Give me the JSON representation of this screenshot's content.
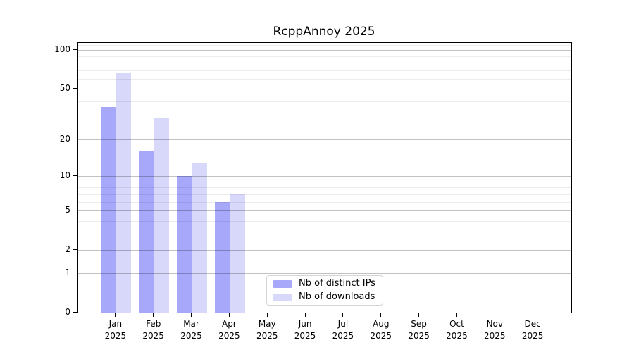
{
  "chart_data": {
    "type": "bar",
    "title": "RcppAnnoy 2025",
    "categories": [
      "Jan",
      "Feb",
      "Mar",
      "Apr",
      "May",
      "Jun",
      "Jul",
      "Aug",
      "Sep",
      "Oct",
      "Nov",
      "Dec"
    ],
    "year_label": "2025",
    "series": [
      {
        "name": "Nb of distinct IPs",
        "color": "#a8a8fa",
        "values": [
          36,
          16,
          10,
          6,
          0,
          0,
          0,
          0,
          0,
          0,
          0,
          0
        ]
      },
      {
        "name": "Nb of downloads",
        "color": "#d8d8fa",
        "values": [
          67,
          30,
          13,
          7,
          0,
          0,
          0,
          0,
          0,
          0,
          0,
          0
        ]
      }
    ],
    "yscale": "log1p",
    "yticks": [
      0,
      1,
      2,
      5,
      10,
      20,
      50,
      100
    ],
    "yticks_minor": [
      3,
      4,
      6,
      7,
      8,
      9,
      30,
      40,
      60,
      70,
      80,
      90,
      110
    ],
    "ylim": [
      0,
      113.5
    ],
    "grid": "horizontal",
    "legend_position": "lower-center"
  }
}
